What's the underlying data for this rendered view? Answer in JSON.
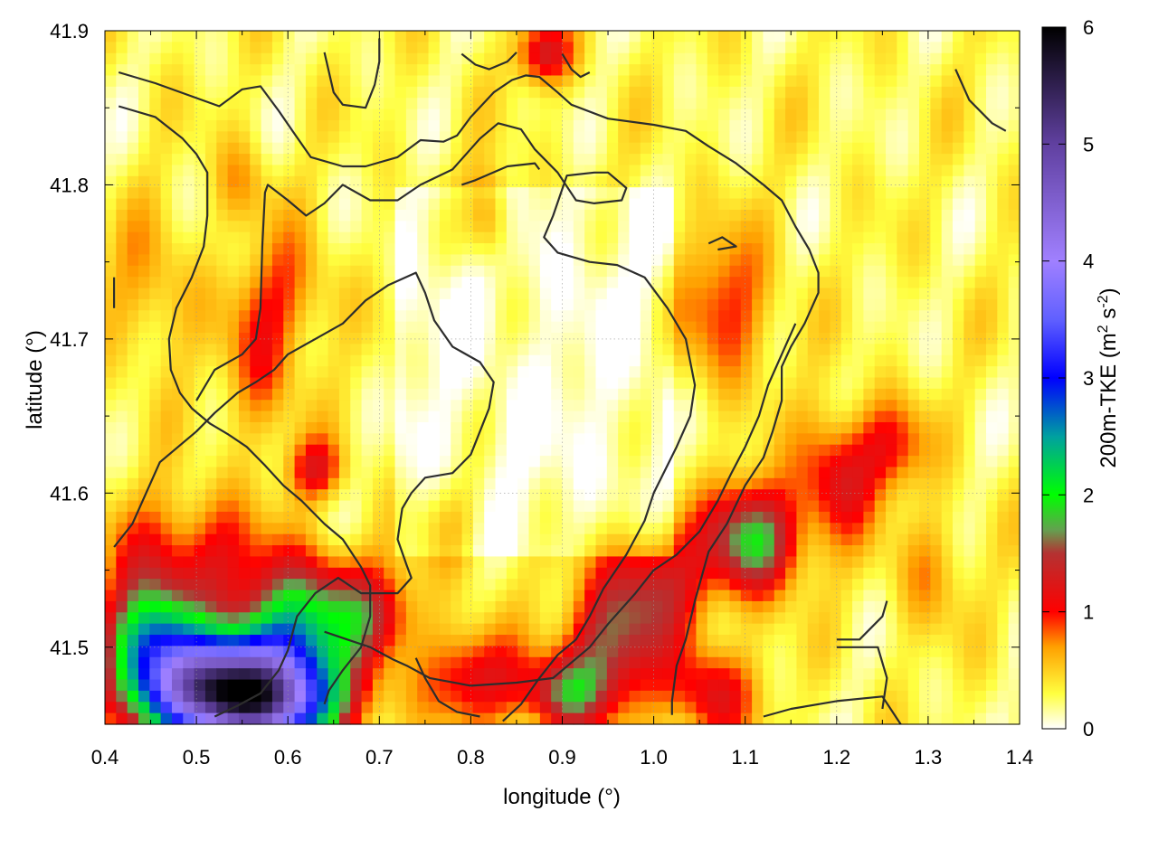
{
  "chart_data": {
    "type": "heatmap",
    "title": "",
    "xlabel": "longitude (°)",
    "ylabel": "latitude (°)",
    "xlim": [
      0.4,
      1.4
    ],
    "ylim": [
      41.45,
      41.9
    ],
    "x_ticks": [
      0.4,
      0.5,
      0.6,
      0.7,
      0.8,
      0.9,
      1.0,
      1.1,
      1.2,
      1.3,
      1.4
    ],
    "y_ticks": [
      41.5,
      41.6,
      41.7,
      41.8,
      41.9
    ],
    "x_tick_labels": [
      "0.4",
      "0.5",
      "0.6",
      "0.7",
      "0.8",
      "0.9",
      "1.0",
      "1.1",
      "1.2",
      "1.3",
      "1.4"
    ],
    "y_tick_labels": [
      "41.5",
      "41.6",
      "41.7",
      "41.8",
      "41.9"
    ],
    "grid": true,
    "colorbar": {
      "label_main": "200m-TKE (m",
      "label_sup1": "2",
      "label_mid": " s",
      "label_sup2": "-2",
      "label_end": ")",
      "range": [
        0,
        6
      ],
      "ticks": [
        0,
        1,
        2,
        3,
        4,
        5,
        6
      ],
      "tick_labels": [
        "0",
        "1",
        "2",
        "3",
        "4",
        "5",
        "6"
      ],
      "palette": [
        {
          "v": 0.0,
          "color": "#ffffff"
        },
        {
          "v": 0.3,
          "color": "#ffff40"
        },
        {
          "v": 0.7,
          "color": "#ffa000"
        },
        {
          "v": 1.0,
          "color": "#ff0000"
        },
        {
          "v": 1.5,
          "color": "#b43232"
        },
        {
          "v": 1.7,
          "color": "#64a050"
        },
        {
          "v": 2.0,
          "color": "#00ff00"
        },
        {
          "v": 2.5,
          "color": "#00a0a0"
        },
        {
          "v": 3.0,
          "color": "#0000ff"
        },
        {
          "v": 3.5,
          "color": "#6060ff"
        },
        {
          "v": 4.0,
          "color": "#a080ff"
        },
        {
          "v": 5.0,
          "color": "#6040a0"
        },
        {
          "v": 6.0,
          "color": "#000000"
        }
      ]
    },
    "contour_lines": [
      [
        [
          0.415,
          41.873
        ],
        [
          0.455,
          41.866
        ],
        [
          0.525,
          41.851
        ],
        [
          0.55,
          41.862
        ],
        [
          0.57,
          41.864
        ],
        [
          0.59,
          41.848
        ],
        [
          0.605,
          41.835
        ],
        [
          0.625,
          41.818
        ],
        [
          0.66,
          41.812
        ],
        [
          0.685,
          41.812
        ],
        [
          0.72,
          41.818
        ],
        [
          0.745,
          41.829
        ],
        [
          0.77,
          41.828
        ],
        [
          0.785,
          41.832
        ],
        [
          0.8,
          41.844
        ],
        [
          0.825,
          41.86
        ],
        [
          0.845,
          41.868
        ],
        [
          0.86,
          41.871
        ],
        [
          0.875,
          41.87
        ],
        [
          0.895,
          41.86
        ],
        [
          0.91,
          41.852
        ],
        [
          0.95,
          41.843
        ],
        [
          1.0,
          41.839
        ],
        [
          1.035,
          41.835
        ],
        [
          1.06,
          41.825
        ],
        [
          1.09,
          41.814
        ],
        [
          1.12,
          41.8
        ],
        [
          1.14,
          41.79
        ],
        [
          1.155,
          41.773
        ],
        [
          1.17,
          41.758
        ],
        [
          1.18,
          41.743
        ],
        [
          1.18,
          41.73
        ],
        [
          1.165,
          41.71
        ],
        [
          1.15,
          41.695
        ],
        [
          1.14,
          41.682
        ],
        [
          1.14,
          41.66
        ],
        [
          1.13,
          41.64
        ],
        [
          1.12,
          41.623
        ],
        [
          1.1,
          41.605
        ],
        [
          1.08,
          41.58
        ],
        [
          1.06,
          41.562
        ],
        [
          1.045,
          41.53
        ],
        [
          1.035,
          41.505
        ],
        [
          1.025,
          41.488
        ],
        [
          1.02,
          41.465
        ],
        [
          1.02,
          41.456
        ]
      ],
      [
        [
          0.415,
          41.851
        ],
        [
          0.455,
          41.844
        ],
        [
          0.485,
          41.83
        ],
        [
          0.5,
          41.82
        ],
        [
          0.512,
          41.808
        ],
        [
          0.512,
          41.78
        ],
        [
          0.508,
          41.76
        ],
        [
          0.495,
          41.74
        ],
        [
          0.478,
          41.72
        ],
        [
          0.47,
          41.7
        ],
        [
          0.472,
          41.68
        ],
        [
          0.482,
          41.665
        ],
        [
          0.495,
          41.655
        ],
        [
          0.515,
          41.645
        ],
        [
          0.535,
          41.638
        ],
        [
          0.555,
          41.63
        ],
        [
          0.575,
          41.618
        ],
        [
          0.595,
          41.605
        ],
        [
          0.615,
          41.595
        ],
        [
          0.64,
          41.58
        ],
        [
          0.66,
          41.57
        ],
        [
          0.68,
          41.552
        ],
        [
          0.69,
          41.54
        ],
        [
          0.69,
          41.52
        ],
        [
          0.68,
          41.5
        ],
        [
          0.66,
          41.485
        ],
        [
          0.645,
          41.472
        ],
        [
          0.64,
          41.463
        ]
      ],
      [
        [
          0.5,
          41.66
        ],
        [
          0.52,
          41.68
        ],
        [
          0.55,
          41.69
        ],
        [
          0.565,
          41.7
        ],
        [
          0.57,
          41.72
        ],
        [
          0.572,
          41.76
        ],
        [
          0.575,
          41.795
        ],
        [
          0.578,
          41.8
        ],
        [
          0.6,
          41.79
        ],
        [
          0.62,
          41.78
        ],
        [
          0.64,
          41.788
        ],
        [
          0.66,
          41.8
        ],
        [
          0.69,
          41.79
        ],
        [
          0.72,
          41.79
        ],
        [
          0.745,
          41.8
        ],
        [
          0.78,
          41.81
        ],
        [
          0.81,
          41.83
        ],
        [
          0.83,
          41.84
        ],
        [
          0.855,
          41.836
        ],
        [
          0.87,
          41.823
        ],
        [
          0.895,
          41.808
        ],
        [
          0.915,
          41.79
        ],
        [
          0.935,
          41.788
        ],
        [
          0.965,
          41.79
        ],
        [
          0.97,
          41.798
        ],
        [
          0.95,
          41.808
        ],
        [
          0.935,
          41.808
        ],
        [
          0.905,
          41.806
        ],
        [
          0.89,
          41.78
        ],
        [
          0.88,
          41.766
        ],
        [
          0.895,
          41.756
        ],
        [
          0.93,
          41.75
        ],
        [
          0.96,
          41.748
        ],
        [
          0.99,
          41.74
        ],
        [
          1.015,
          41.72
        ],
        [
          1.035,
          41.7
        ],
        [
          1.045,
          41.67
        ],
        [
          1.04,
          41.65
        ],
        [
          1.025,
          41.63
        ],
        [
          1.01,
          41.612
        ],
        [
          1.0,
          41.6
        ],
        [
          0.99,
          41.582
        ],
        [
          0.97,
          41.56
        ],
        [
          0.945,
          41.538
        ],
        [
          0.93,
          41.52
        ],
        [
          0.915,
          41.505
        ],
        [
          0.895,
          41.495
        ],
        [
          0.875,
          41.48
        ],
        [
          0.855,
          41.463
        ],
        [
          0.835,
          41.452
        ]
      ],
      [
        [
          0.41,
          41.565
        ],
        [
          0.43,
          41.58
        ],
        [
          0.445,
          41.6
        ],
        [
          0.46,
          41.62
        ],
        [
          0.48,
          41.63
        ],
        [
          0.5,
          41.64
        ],
        [
          0.52,
          41.652
        ],
        [
          0.545,
          41.665
        ],
        [
          0.565,
          41.672
        ],
        [
          0.585,
          41.68
        ],
        [
          0.6,
          41.69
        ],
        [
          0.63,
          41.7
        ],
        [
          0.66,
          41.71
        ],
        [
          0.685,
          41.725
        ],
        [
          0.71,
          41.735
        ],
        [
          0.74,
          41.743
        ],
        [
          0.75,
          41.73
        ],
        [
          0.76,
          41.712
        ],
        [
          0.78,
          41.695
        ],
        [
          0.81,
          41.685
        ],
        [
          0.825,
          41.672
        ],
        [
          0.82,
          41.655
        ],
        [
          0.81,
          41.64
        ],
        [
          0.8,
          41.625
        ],
        [
          0.78,
          41.613
        ],
        [
          0.75,
          41.61
        ],
        [
          0.735,
          41.6
        ],
        [
          0.725,
          41.59
        ],
        [
          0.72,
          41.57
        ],
        [
          0.73,
          41.553
        ],
        [
          0.735,
          41.545
        ],
        [
          0.72,
          41.535
        ],
        [
          0.68,
          41.535
        ],
        [
          0.655,
          41.545
        ],
        [
          0.63,
          41.535
        ],
        [
          0.61,
          41.52
        ],
        [
          0.6,
          41.498
        ],
        [
          0.59,
          41.485
        ],
        [
          0.57,
          41.47
        ],
        [
          0.545,
          41.462
        ],
        [
          0.52,
          41.455
        ]
      ],
      [
        [
          0.41,
          41.74
        ],
        [
          0.41,
          41.72
        ]
      ],
      [
        [
          0.74,
          41.493
        ],
        [
          0.75,
          41.48
        ],
        [
          0.765,
          41.465
        ],
        [
          0.785,
          41.458
        ],
        [
          0.81,
          41.455
        ]
      ],
      [
        [
          0.64,
          41.51
        ],
        [
          0.665,
          41.505
        ],
        [
          0.69,
          41.5
        ],
        [
          0.715,
          41.492
        ],
        [
          0.73,
          41.488
        ],
        [
          0.755,
          41.48
        ],
        [
          0.8,
          41.475
        ],
        [
          0.85,
          41.477
        ],
        [
          0.89,
          41.48
        ],
        [
          0.91,
          41.49
        ],
        [
          0.93,
          41.5
        ],
        [
          0.95,
          41.515
        ],
        [
          0.98,
          41.535
        ],
        [
          1.0,
          41.55
        ],
        [
          1.025,
          41.56
        ],
        [
          1.05,
          41.575
        ],
        [
          1.07,
          41.595
        ],
        [
          1.085,
          41.613
        ],
        [
          1.1,
          41.63
        ],
        [
          1.115,
          41.65
        ],
        [
          1.125,
          41.67
        ],
        [
          1.14,
          41.69
        ],
        [
          1.155,
          41.71
        ]
      ],
      [
        [
          1.06,
          41.762
        ],
        [
          1.075,
          41.766
        ],
        [
          1.09,
          41.76
        ],
        [
          1.07,
          41.758
        ]
      ],
      [
        [
          1.2,
          41.5
        ],
        [
          1.22,
          41.5
        ],
        [
          1.245,
          41.5
        ],
        [
          1.255,
          41.48
        ],
        [
          1.25,
          41.46
        ]
      ],
      [
        [
          1.2,
          41.505
        ],
        [
          1.225,
          41.505
        ],
        [
          1.25,
          41.52
        ],
        [
          1.255,
          41.53
        ]
      ],
      [
        [
          1.12,
          41.455
        ],
        [
          1.15,
          41.46
        ],
        [
          1.2,
          41.465
        ],
        [
          1.25,
          41.468
        ],
        [
          1.27,
          41.45
        ]
      ],
      [
        [
          1.33,
          41.875
        ],
        [
          1.345,
          41.855
        ],
        [
          1.37,
          41.84
        ],
        [
          1.385,
          41.835
        ]
      ],
      [
        [
          0.64,
          41.886
        ],
        [
          0.65,
          41.86
        ],
        [
          0.66,
          41.852
        ],
        [
          0.685,
          41.85
        ],
        [
          0.695,
          41.865
        ],
        [
          0.7,
          41.88
        ],
        [
          0.7,
          41.895
        ]
      ],
      [
        [
          0.79,
          41.885
        ],
        [
          0.805,
          41.878
        ],
        [
          0.82,
          41.875
        ],
        [
          0.84,
          41.88
        ],
        [
          0.85,
          41.886
        ]
      ],
      [
        [
          0.9,
          41.885
        ],
        [
          0.91,
          41.875
        ],
        [
          0.92,
          41.87
        ],
        [
          0.93,
          41.873
        ]
      ],
      [
        [
          0.79,
          41.8
        ],
        [
          0.805,
          41.803
        ],
        [
          0.84,
          41.812
        ],
        [
          0.87,
          41.814
        ],
        [
          0.875,
          41.81
        ]
      ]
    ],
    "hotspots": [
      {
        "x": 0.56,
        "y": 41.465,
        "sx": 0.09,
        "sy": 0.03,
        "amp": 4.5
      },
      {
        "x": 0.52,
        "y": 41.48,
        "sx": 0.06,
        "sy": 0.03,
        "amp": 2.0
      },
      {
        "x": 0.45,
        "y": 41.5,
        "sx": 0.05,
        "sy": 0.04,
        "amp": 2.3
      },
      {
        "x": 0.6,
        "y": 41.5,
        "sx": 0.06,
        "sy": 0.03,
        "amp": 1.4
      },
      {
        "x": 0.62,
        "y": 41.53,
        "sx": 0.07,
        "sy": 0.035,
        "amp": 1.2
      },
      {
        "x": 0.7,
        "y": 41.52,
        "sx": 0.05,
        "sy": 0.03,
        "amp": 0.7
      },
      {
        "x": 0.46,
        "y": 41.56,
        "sx": 0.06,
        "sy": 0.04,
        "amp": 0.6
      },
      {
        "x": 0.53,
        "y": 41.56,
        "sx": 0.05,
        "sy": 0.04,
        "amp": 0.5
      },
      {
        "x": 0.63,
        "y": 41.615,
        "sx": 0.03,
        "sy": 0.02,
        "amp": 0.8
      },
      {
        "x": 0.57,
        "y": 41.68,
        "sx": 0.04,
        "sy": 0.05,
        "amp": 0.55
      },
      {
        "x": 0.6,
        "y": 41.73,
        "sx": 0.05,
        "sy": 0.04,
        "amp": 0.5
      },
      {
        "x": 0.45,
        "y": 41.73,
        "sx": 0.05,
        "sy": 0.05,
        "amp": 0.4
      },
      {
        "x": 0.55,
        "y": 41.8,
        "sx": 0.03,
        "sy": 0.03,
        "amp": 0.4
      },
      {
        "x": 0.82,
        "y": 41.78,
        "sx": 0.025,
        "sy": 0.03,
        "amp": 0.7
      },
      {
        "x": 0.88,
        "y": 41.885,
        "sx": 0.03,
        "sy": 0.02,
        "amp": 1.0
      },
      {
        "x": 1.08,
        "y": 41.72,
        "sx": 0.05,
        "sy": 0.05,
        "amp": 0.7
      },
      {
        "x": 1.11,
        "y": 41.57,
        "sx": 0.05,
        "sy": 0.035,
        "amp": 1.6
      },
      {
        "x": 1.0,
        "y": 41.54,
        "sx": 0.06,
        "sy": 0.04,
        "amp": 1.0
      },
      {
        "x": 0.95,
        "y": 41.5,
        "sx": 0.05,
        "sy": 0.04,
        "amp": 1.1
      },
      {
        "x": 0.9,
        "y": 41.47,
        "sx": 0.05,
        "sy": 0.025,
        "amp": 1.2
      },
      {
        "x": 0.8,
        "y": 41.48,
        "sx": 0.05,
        "sy": 0.03,
        "amp": 0.9
      },
      {
        "x": 1.2,
        "y": 41.61,
        "sx": 0.04,
        "sy": 0.04,
        "amp": 0.9
      },
      {
        "x": 1.26,
        "y": 41.63,
        "sx": 0.04,
        "sy": 0.03,
        "amp": 0.7
      },
      {
        "x": 1.06,
        "y": 41.47,
        "sx": 0.05,
        "sy": 0.03,
        "amp": 0.9
      },
      {
        "x": 1.3,
        "y": 41.55,
        "sx": 0.04,
        "sy": 0.04,
        "amp": 0.4
      },
      {
        "x": 0.78,
        "y": 41.58,
        "sx": 0.04,
        "sy": 0.03,
        "amp": 0.4
      }
    ]
  }
}
